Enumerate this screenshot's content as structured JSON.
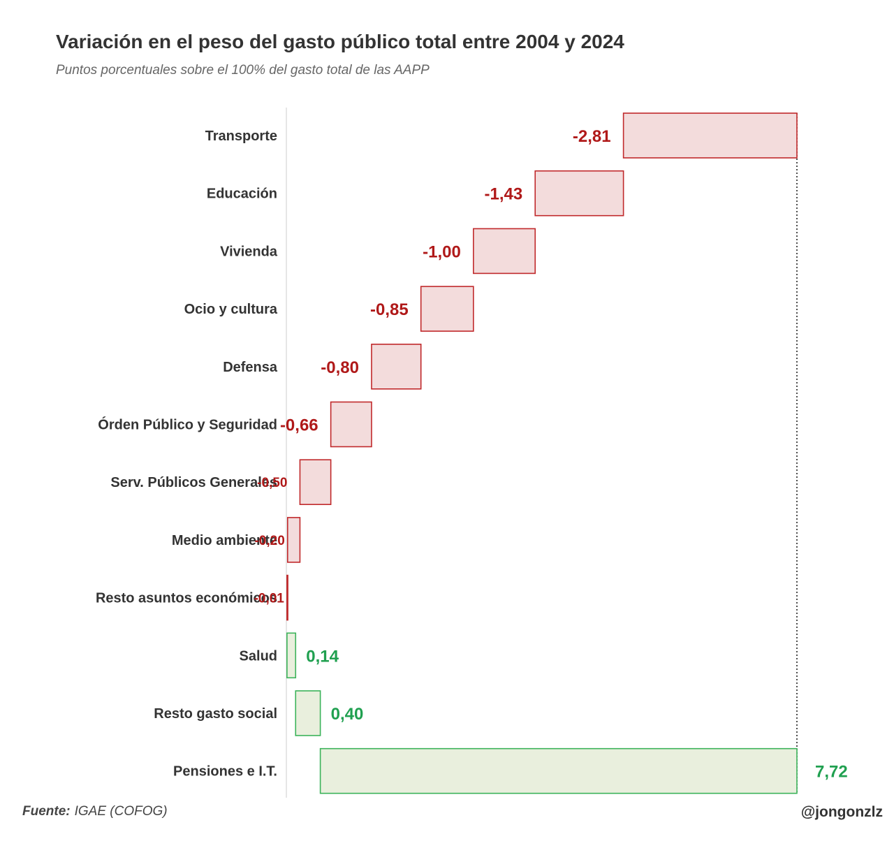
{
  "chart_data": {
    "type": "waterfall",
    "title": "Variación en el peso del gasto público total entre 2004 y 2024",
    "subtitle": "Puntos porcentuales sobre el 100% del gasto total de las AAPP",
    "categories": [
      "Transporte",
      "Educación",
      "Vivienda",
      "Ocio y cultura",
      "Defensa",
      "Órden Público y Seguridad",
      "Serv. Públicos Generales",
      "Medio ambiente",
      "Resto asuntos económicos",
      "Salud",
      "Resto gasto social",
      "Pensiones e I.T."
    ],
    "values": [
      -2.81,
      -1.43,
      -1.0,
      -0.85,
      -0.8,
      -0.66,
      -0.5,
      -0.2,
      -0.01,
      0.14,
      0.4,
      7.72
    ],
    "value_labels": [
      "-2,81",
      "-1,43",
      "-1,00",
      "-0,85",
      "-0,80",
      "-0,66",
      "-0,50",
      "-0,20",
      "-0,01",
      "0,14",
      "0,40",
      "7,72"
    ],
    "xlim": [
      -8.27,
      0.0
    ],
    "colors": {
      "negative_stroke": "#c0292b",
      "negative_fill": "#f3dcdc",
      "negative_text": "#b01919",
      "positive_stroke": "#3cb35a",
      "positive_fill": "#e9efdd",
      "positive_text": "#20a050",
      "label_text": "#333333"
    }
  },
  "footer": {
    "source_label": "Fuente:",
    "source_text": "IGAE (COFOG)",
    "credit": "@jongonzlz"
  }
}
